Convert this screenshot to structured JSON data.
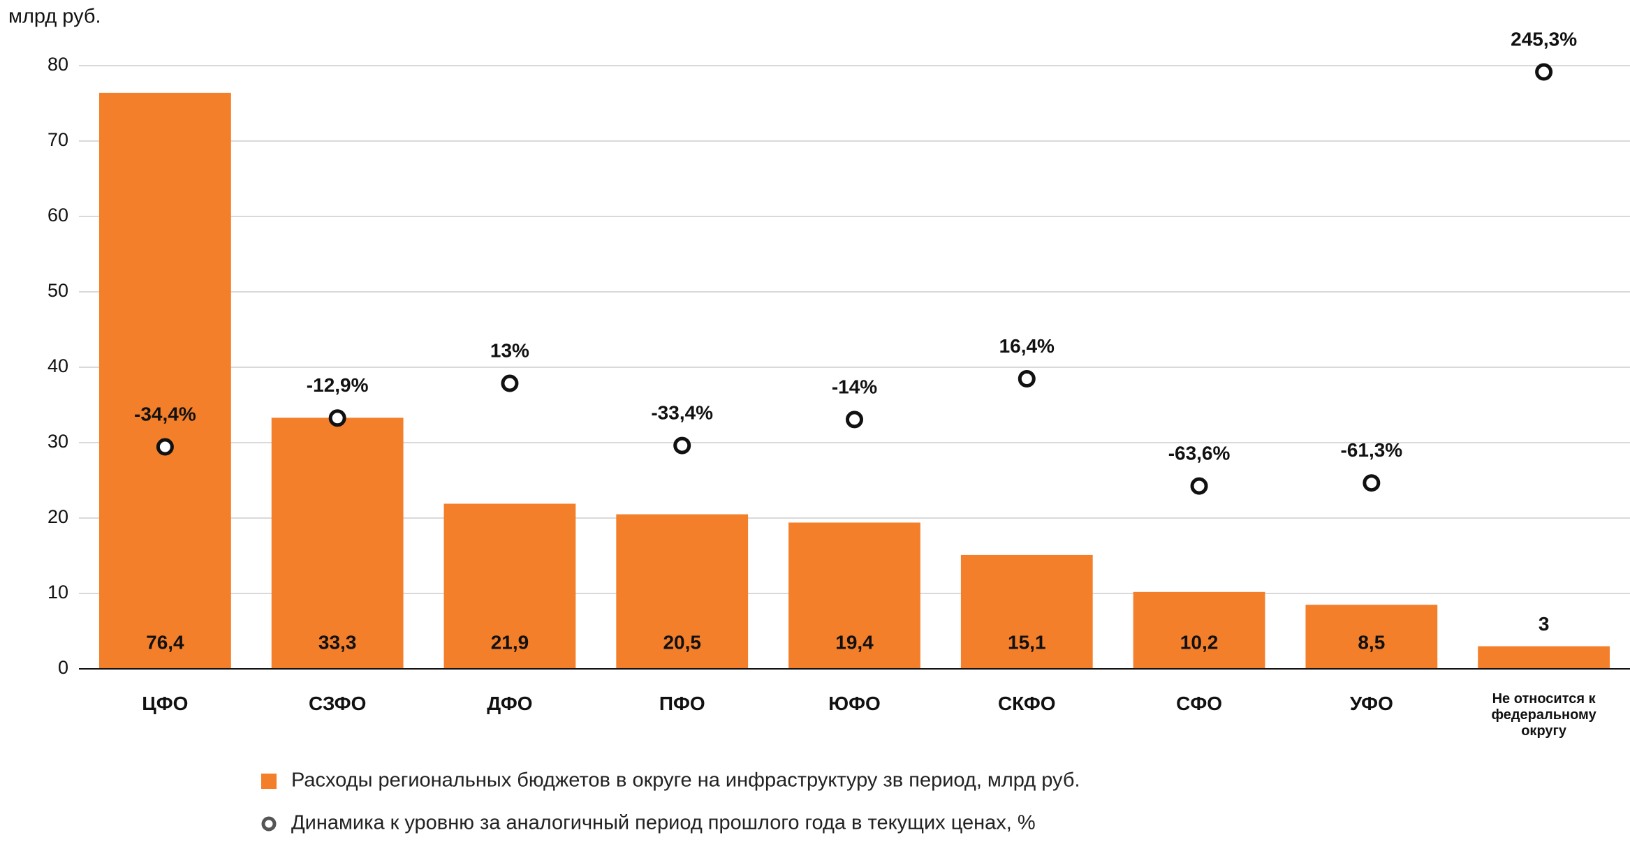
{
  "chart_data": {
    "type": "bar",
    "y_axis_label": "млрд руб.",
    "categories": [
      "ЦФО",
      "СЗФО",
      "ДФО",
      "ПФО",
      "ЮФО",
      "СКФО",
      "СФО",
      "УФО",
      "Не относится к федеральному округу"
    ],
    "series": [
      {
        "name": "Расходы региональных бюджетов в округе на инфраструктуру зв период, млрд руб.",
        "type": "bar",
        "color": "#f47f2a",
        "values": [
          76.4,
          33.3,
          21.9,
          20.5,
          19.4,
          15.1,
          10.2,
          8.5,
          3
        ],
        "value_labels": [
          "76,4",
          "33,3",
          "21,9",
          "20,5",
          "19,4",
          "15,1",
          "10,2",
          "8,5",
          "3"
        ]
      },
      {
        "name": "Динамика к уровню за аналогичный период прошлого года в текущих ценах, %",
        "type": "scatter",
        "axis": "y2",
        "color": "#111111",
        "values": [
          -34.4,
          -12.9,
          13,
          -33.4,
          -14,
          16.4,
          -63.6,
          -61.3,
          245.3
        ],
        "value_labels": [
          "-34,4%",
          "-12,9%",
          "13%",
          "-33,4%",
          "-14%",
          "16,4%",
          "-63,6%",
          "-61,3%",
          "245,3%"
        ]
      }
    ],
    "ylim": [
      0,
      80
    ],
    "yticks": [
      0,
      10,
      20,
      30,
      40,
      50,
      60,
      70,
      80
    ],
    "y2lim": [
      -200,
      250
    ],
    "grid": true
  }
}
